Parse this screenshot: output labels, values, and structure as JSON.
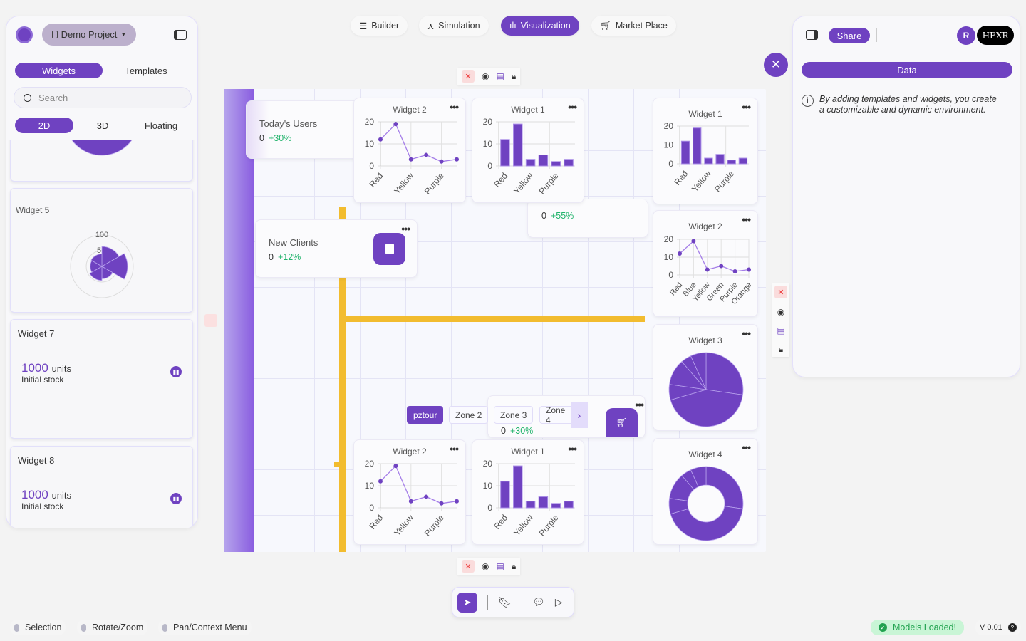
{
  "left_panel": {
    "project": "Demo Project",
    "tabs": [
      "Widgets",
      "Templates"
    ],
    "search_placeholder": "Search",
    "modes": [
      "2D",
      "3D",
      "Floating"
    ],
    "widgets": [
      {
        "title": "Widget 5",
        "polar_labels": [
          "100",
          "5"
        ]
      },
      {
        "title": "Widget 7",
        "value": "1000",
        "unit": "units",
        "caption": "Initial stock"
      },
      {
        "title": "Widget 8",
        "value": "1000",
        "unit": "units",
        "caption": "Initial stock"
      }
    ]
  },
  "nav": {
    "items": [
      "Builder",
      "Simulation",
      "Visualization",
      "Market Place"
    ],
    "active": "Visualization"
  },
  "canvas": {
    "kpis": [
      {
        "label": "Today's Users",
        "value": "0",
        "change": "+30%"
      },
      {
        "label": "New Clients",
        "value": "0",
        "change": "+12%"
      },
      {
        "label": "",
        "value": "0",
        "change": "+55%"
      },
      {
        "label": "",
        "value": "0",
        "change": "+30%"
      }
    ],
    "zones": [
      "pztour",
      "Zone 2",
      "Zone 3",
      "Zone 4"
    ],
    "widget_titles": {
      "w1": "Widget 1",
      "w2": "Widget 2",
      "w3": "Widget 3",
      "w4": "Widget 4"
    }
  },
  "right_panel": {
    "share": "Share",
    "avatar": "R",
    "brand": "HEXR",
    "data_tab": "Data",
    "info": "By adding templates and widgets, you create a customizable and dynamic environment."
  },
  "status_bar": {
    "hints": [
      "Selection",
      "Rotate/Zoom",
      "Pan/Context Menu"
    ],
    "models": "Models Loaded!",
    "version": "V 0.01"
  },
  "colors": {
    "accent": "#6f42c1",
    "success": "#21b36b",
    "rail": "#f2bc2f"
  },
  "chart_data": [
    {
      "type": "line",
      "title": "Widget 2",
      "categories": [
        "Red",
        "Blue",
        "Yellow",
        "Green",
        "Purple",
        "Orange"
      ],
      "values": [
        12,
        19,
        3,
        5,
        2,
        3
      ],
      "ylim": [
        0,
        20
      ],
      "yticks": [
        "0",
        "10",
        "20"
      ]
    },
    {
      "type": "bar",
      "title": "Widget 1",
      "categories": [
        "Red",
        "Blue",
        "Yellow",
        "Green",
        "Purple",
        "Orange"
      ],
      "values": [
        12,
        19,
        3,
        5,
        2,
        3
      ],
      "ylim": [
        0,
        20
      ],
      "yticks": [
        "0",
        "10",
        "20"
      ]
    },
    {
      "type": "pie",
      "title": "Widget 3",
      "values": [
        12,
        19,
        3,
        5,
        2,
        3
      ]
    },
    {
      "type": "doughnut",
      "title": "Widget 4",
      "values": [
        12,
        19,
        3,
        5,
        2,
        3
      ]
    },
    {
      "type": "polar",
      "title": "Widget 5",
      "values": [
        12,
        19,
        3,
        5,
        2,
        3
      ]
    }
  ]
}
